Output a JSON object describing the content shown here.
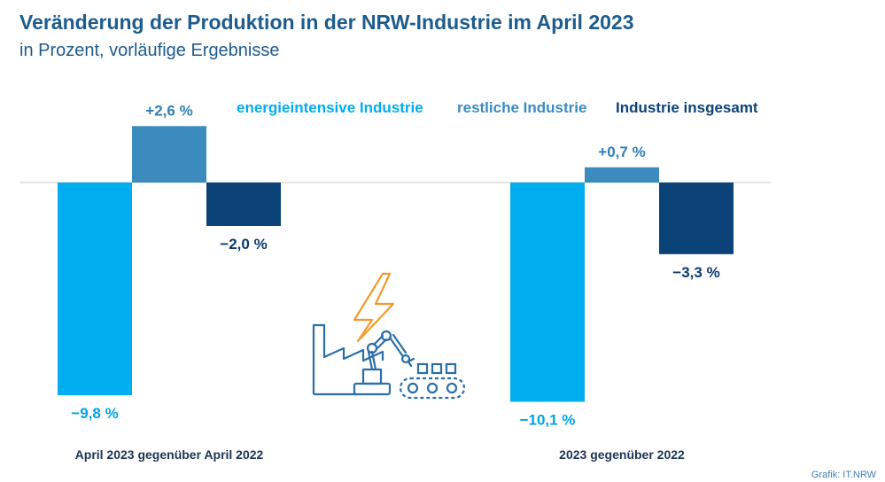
{
  "title": "Veränderung der Produktion in der NRW-Industrie im April 2023",
  "subtitle": "in Prozent, vorläufige Ergebnisse",
  "source": "Grafik: IT.NRW",
  "colors": {
    "energieintensive": "#00adef",
    "restliche": "#3b8bbf",
    "insgesamt": "#0b4379",
    "title": "#1d5c8c",
    "illustration_blue": "#2a6ea8",
    "illustration_orange": "#f39a2e"
  },
  "icons": [
    "factory-icon",
    "lightning-bolt-icon",
    "robot-arm-icon",
    "conveyor-belt-icon"
  ],
  "chart_data": {
    "type": "bar",
    "categories": [
      "April 2023 gegenüber April 2022",
      "2023 gegenüber 2022"
    ],
    "series": [
      {
        "name": "energieintensive Industrie",
        "values": [
          -9.8,
          -10.1
        ],
        "labels": [
          "−9,8 %",
          "−10,1 %"
        ],
        "color": "#00adef"
      },
      {
        "name": "restliche Industrie",
        "values": [
          2.6,
          0.7
        ],
        "labels": [
          "+2,6 %",
          "+0,7 %"
        ],
        "color": "#3b8bbf"
      },
      {
        "name": "Industrie insgesamt",
        "values": [
          -2.0,
          -3.3
        ],
        "labels": [
          "−2,0 %",
          "−3,3 %"
        ],
        "color": "#0b4379"
      }
    ],
    "legend_position": "top",
    "axes_visible": false,
    "grid": false,
    "baseline": 0
  }
}
